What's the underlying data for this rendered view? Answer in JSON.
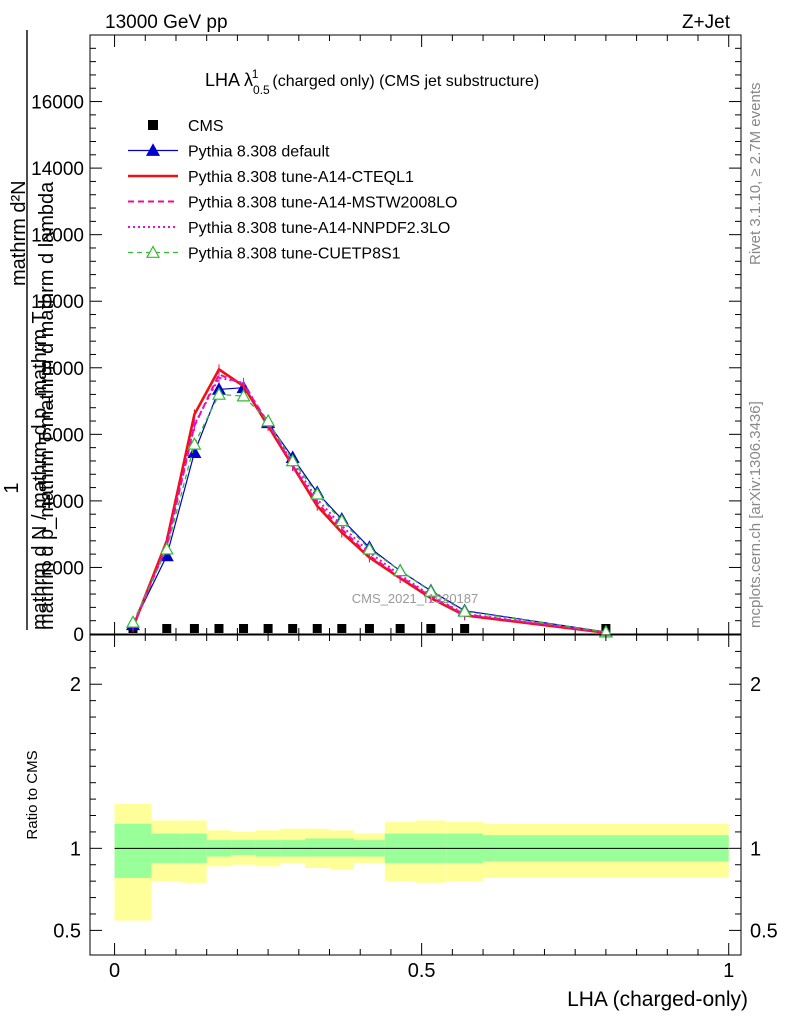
{
  "header": {
    "energy": "13000 GeV pp",
    "process": "Z+Jet"
  },
  "side_labels": {
    "rivet": "Rivet 3.1.10, ≥ 2.7M events",
    "mcplots": "mcplots.cern.ch [arXiv:1306.3436]"
  },
  "colors": {
    "cms": "#000000",
    "default": "#0000cc",
    "cteql1": "#ee1111",
    "mstw": "#ee0f8f",
    "nnpdf": "#dd11dd",
    "cuetp": "#33bb33",
    "band_inner": "#99ff99",
    "band_outer": "#ffff99"
  },
  "chart_data": [
    {
      "type": "line",
      "title": "LHA λ",
      "title_sup": "1",
      "title_sub": "0.5",
      "title_rest": "(charged only) (CMS jet substructure)",
      "ylabel_top": "mathrm d²N",
      "ylabel_mid": "mathrm d p_mathrm T mathrm d mathrm d lambda",
      "ylabel_one": "1",
      "ylabel_bottom": "mathrm d N / mathrm d p_mathrm T",
      "watermark": "CMS_2021_I1920187",
      "xlim": [
        -0.04,
        1.02
      ],
      "ylim": [
        0,
        18000
      ],
      "yticks": [
        0,
        2000,
        4000,
        6000,
        8000,
        10000,
        12000,
        14000,
        16000
      ],
      "ytick_labels": [
        "0",
        "2000",
        "4000",
        "6000",
        "8000",
        "10000",
        "12000",
        "14000",
        "16000"
      ],
      "legend_position": "top-left",
      "x": [
        0.03,
        0.085,
        0.13,
        0.17,
        0.21,
        0.25,
        0.29,
        0.33,
        0.37,
        0.415,
        0.465,
        0.515,
        0.57,
        0.8
      ],
      "series": [
        {
          "key": "cms",
          "name": "CMS",
          "style": "marker-square",
          "values": [
            30,
            30,
            30,
            30,
            30,
            30,
            30,
            30,
            30,
            30,
            30,
            30,
            30,
            30
          ]
        },
        {
          "key": "default",
          "name": "Pythia 8.308 default",
          "style": "solid-triangle",
          "values": [
            280,
            2350,
            5450,
            7350,
            7400,
            6350,
            5300,
            4250,
            3450,
            2600,
            1900,
            1300,
            700,
            60
          ]
        },
        {
          "key": "cteql1",
          "name": "Pythia 8.308 tune-A14-CTEQL1",
          "style": "solid-thick",
          "values": [
            200,
            2800,
            6600,
            7950,
            7450,
            6250,
            5050,
            3850,
            3050,
            2300,
            1680,
            1080,
            560,
            40
          ]
        },
        {
          "key": "mstw",
          "name": "Pythia 8.308 tune-A14-MSTW2008LO",
          "style": "dashed",
          "values": [
            210,
            2650,
            6250,
            7800,
            7500,
            6350,
            5050,
            3950,
            3150,
            2350,
            1730,
            1120,
            590,
            45
          ]
        },
        {
          "key": "nnpdf",
          "name": "Pythia 8.308 tune-A14-NNPDF2.3LO",
          "style": "dotted",
          "values": [
            230,
            2700,
            6300,
            7700,
            7550,
            6300,
            5150,
            4050,
            3250,
            2450,
            1780,
            1150,
            610,
            45
          ]
        },
        {
          "key": "cuetp",
          "name": "Pythia 8.308 tune-CUETP8S1",
          "style": "dashed-open-triangle",
          "values": [
            350,
            2550,
            5700,
            7200,
            7150,
            6400,
            5200,
            4200,
            3400,
            2550,
            1900,
            1280,
            680,
            60
          ]
        }
      ]
    },
    {
      "type": "area",
      "ylabel": "Ratio to CMS",
      "xlabel": "LHA (charged-only)",
      "xlim": [
        -0.04,
        1.02
      ],
      "ylim": [
        0.35,
        2.3
      ],
      "xticks": [
        0,
        0.5,
        1
      ],
      "xtick_labels": [
        "0",
        "0.5",
        "1"
      ],
      "yticks": [
        0.5,
        1,
        2
      ],
      "ytick_labels": [
        "0.5",
        "1",
        "2"
      ],
      "reference_line": 1,
      "bins": [
        {
          "x0": 0.0,
          "x1": 0.06,
          "inner": [
            0.82,
            1.15
          ],
          "outer": [
            0.56,
            1.27
          ]
        },
        {
          "x0": 0.06,
          "x1": 0.11,
          "inner": [
            0.91,
            1.09
          ],
          "outer": [
            0.8,
            1.17
          ]
        },
        {
          "x0": 0.11,
          "x1": 0.15,
          "inner": [
            0.91,
            1.09
          ],
          "outer": [
            0.79,
            1.17
          ]
        },
        {
          "x0": 0.15,
          "x1": 0.19,
          "inner": [
            0.95,
            1.05
          ],
          "outer": [
            0.89,
            1.11
          ]
        },
        {
          "x0": 0.19,
          "x1": 0.23,
          "inner": [
            0.96,
            1.05
          ],
          "outer": [
            0.9,
            1.1
          ]
        },
        {
          "x0": 0.23,
          "x1": 0.27,
          "inner": [
            0.95,
            1.05
          ],
          "outer": [
            0.89,
            1.11
          ]
        },
        {
          "x0": 0.27,
          "x1": 0.31,
          "inner": [
            0.95,
            1.05
          ],
          "outer": [
            0.91,
            1.12
          ]
        },
        {
          "x0": 0.31,
          "x1": 0.35,
          "inner": [
            0.95,
            1.06
          ],
          "outer": [
            0.88,
            1.12
          ]
        },
        {
          "x0": 0.35,
          "x1": 0.39,
          "inner": [
            0.95,
            1.06
          ],
          "outer": [
            0.87,
            1.11
          ]
        },
        {
          "x0": 0.39,
          "x1": 0.44,
          "inner": [
            0.95,
            1.05
          ],
          "outer": [
            0.91,
            1.09
          ]
        },
        {
          "x0": 0.44,
          "x1": 0.49,
          "inner": [
            0.91,
            1.09
          ],
          "outer": [
            0.8,
            1.16
          ]
        },
        {
          "x0": 0.49,
          "x1": 0.54,
          "inner": [
            0.91,
            1.09
          ],
          "outer": [
            0.79,
            1.17
          ]
        },
        {
          "x0": 0.54,
          "x1": 0.6,
          "inner": [
            0.91,
            1.09
          ],
          "outer": [
            0.8,
            1.16
          ]
        },
        {
          "x0": 0.6,
          "x1": 1.0,
          "inner": [
            0.92,
            1.08
          ],
          "outer": [
            0.82,
            1.15
          ]
        }
      ]
    }
  ]
}
